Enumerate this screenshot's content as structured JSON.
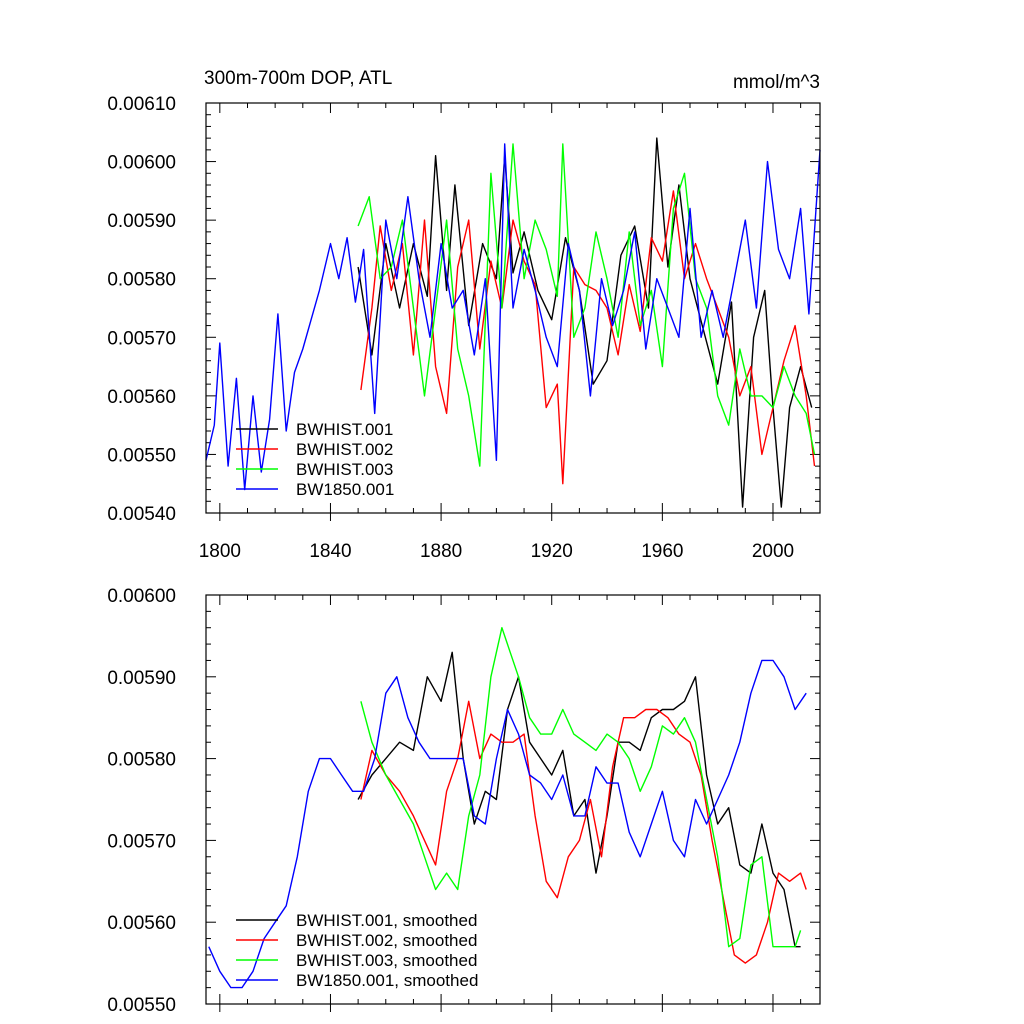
{
  "chart_data": [
    {
      "type": "line",
      "title": "300m-700m DOP, ATL",
      "units": "mmol/m^3",
      "xlabel": "",
      "ylabel": "",
      "xlim": [
        1795,
        2017
      ],
      "ylim": [
        0.0054,
        0.0061
      ],
      "x_ticks": [
        1800,
        1840,
        1880,
        1920,
        1960,
        2000
      ],
      "x_tick_labels": [
        "1800",
        "1840",
        "1880",
        "1920",
        "1960",
        "2000"
      ],
      "y_ticks": [
        0.0054,
        0.0055,
        0.0056,
        0.0057,
        0.0058,
        0.0059,
        0.006,
        0.0061
      ],
      "y_tick_labels": [
        "0.00540",
        "0.00550",
        "0.00560",
        "0.00570",
        "0.00580",
        "0.00590",
        "0.00600",
        "0.00610"
      ],
      "grid": false,
      "legend_placement": "bottom-left",
      "series": [
        {
          "name": "BWHIST.001",
          "color": "#000000",
          "x": [
            1850,
            1855,
            1860,
            1865,
            1870,
            1875,
            1878,
            1882,
            1885,
            1890,
            1895,
            1900,
            1903,
            1906,
            1910,
            1915,
            1920,
            1925,
            1930,
            1935,
            1940,
            1945,
            1950,
            1955,
            1958,
            1962,
            1966,
            1970,
            1975,
            1980,
            1985,
            1989,
            1993,
            1997,
            2000,
            2003,
            2006,
            2010,
            2014
          ],
          "values": [
            0.00582,
            0.00567,
            0.00586,
            0.00575,
            0.00586,
            0.00577,
            0.00601,
            0.00578,
            0.00596,
            0.00572,
            0.00586,
            0.0058,
            0.00601,
            0.00581,
            0.00588,
            0.00578,
            0.00573,
            0.00587,
            0.00578,
            0.00562,
            0.00566,
            0.00584,
            0.00589,
            0.00575,
            0.00604,
            0.00582,
            0.00596,
            0.0058,
            0.00571,
            0.00562,
            0.00576,
            0.00541,
            0.0057,
            0.00578,
            0.00558,
            0.00541,
            0.00558,
            0.00565,
            0.00558
          ]
        },
        {
          "name": "BWHIST.002",
          "color": "#ff0000",
          "x": [
            1851,
            1855,
            1858,
            1862,
            1866,
            1870,
            1874,
            1878,
            1882,
            1886,
            1890,
            1894,
            1898,
            1902,
            1906,
            1910,
            1914,
            1918,
            1922,
            1924,
            1928,
            1932,
            1936,
            1940,
            1944,
            1948,
            1952,
            1956,
            1960,
            1964,
            1968,
            1972,
            1976,
            1980,
            1984,
            1988,
            1992,
            1996,
            2000,
            2004,
            2008,
            2012,
            2015
          ],
          "values": [
            0.00561,
            0.00575,
            0.00589,
            0.00578,
            0.00586,
            0.00567,
            0.0059,
            0.00565,
            0.00557,
            0.00582,
            0.0059,
            0.00568,
            0.00583,
            0.00575,
            0.0059,
            0.00583,
            0.00579,
            0.00558,
            0.00562,
            0.00545,
            0.00582,
            0.00579,
            0.00578,
            0.00575,
            0.00567,
            0.00579,
            0.00571,
            0.00587,
            0.00583,
            0.00595,
            0.0058,
            0.00586,
            0.0058,
            0.00575,
            0.0057,
            0.0056,
            0.00565,
            0.0055,
            0.00558,
            0.00566,
            0.00572,
            0.0056,
            0.00548
          ]
        },
        {
          "name": "BWHIST.003",
          "color": "#00ff00",
          "x": [
            1850,
            1854,
            1858,
            1862,
            1866,
            1870,
            1874,
            1878,
            1882,
            1886,
            1890,
            1894,
            1898,
            1902,
            1906,
            1910,
            1914,
            1918,
            1922,
            1924,
            1928,
            1932,
            1936,
            1940,
            1944,
            1948,
            1952,
            1956,
            1960,
            1964,
            1968,
            1972,
            1976,
            1980,
            1984,
            1988,
            1992,
            1996,
            2000,
            2004,
            2008,
            2012,
            2015
          ],
          "values": [
            0.00589,
            0.00594,
            0.0058,
            0.00582,
            0.0059,
            0.00575,
            0.0056,
            0.00575,
            0.0059,
            0.00568,
            0.0056,
            0.00548,
            0.00598,
            0.00575,
            0.00603,
            0.0058,
            0.0059,
            0.00585,
            0.00577,
            0.00603,
            0.0057,
            0.00575,
            0.00588,
            0.0058,
            0.0057,
            0.00588,
            0.00572,
            0.00578,
            0.00565,
            0.00592,
            0.00598,
            0.0058,
            0.00575,
            0.0056,
            0.00555,
            0.00568,
            0.0056,
            0.0056,
            0.00558,
            0.00565,
            0.0056,
            0.00557,
            0.0055
          ]
        },
        {
          "name": "BW1850.001",
          "color": "#0000ff",
          "x": [
            1795,
            1798,
            1800,
            1803,
            1806,
            1809,
            1812,
            1815,
            1818,
            1821,
            1824,
            1827,
            1830,
            1833,
            1836,
            1840,
            1843,
            1846,
            1849,
            1852,
            1856,
            1860,
            1864,
            1868,
            1872,
            1876,
            1880,
            1884,
            1888,
            1892,
            1896,
            1900,
            1903,
            1906,
            1910,
            1914,
            1918,
            1922,
            1926,
            1930,
            1934,
            1938,
            1942,
            1946,
            1950,
            1954,
            1958,
            1962,
            1966,
            1970,
            1974,
            1978,
            1982,
            1986,
            1990,
            1994,
            1998,
            2002,
            2006,
            2010,
            2013,
            2017
          ],
          "values": [
            0.00549,
            0.00555,
            0.00569,
            0.00548,
            0.00563,
            0.00544,
            0.0056,
            0.00547,
            0.00556,
            0.00574,
            0.00554,
            0.00564,
            0.00568,
            0.00573,
            0.00578,
            0.00586,
            0.0058,
            0.00587,
            0.00576,
            0.00585,
            0.00557,
            0.0059,
            0.0058,
            0.00594,
            0.0058,
            0.0057,
            0.00586,
            0.00575,
            0.00578,
            0.00567,
            0.0058,
            0.00549,
            0.00603,
            0.00575,
            0.00585,
            0.00578,
            0.0057,
            0.00565,
            0.00586,
            0.00578,
            0.0056,
            0.0058,
            0.00572,
            0.00578,
            0.00588,
            0.00568,
            0.0058,
            0.00575,
            0.0057,
            0.00592,
            0.0057,
            0.00578,
            0.0057,
            0.0058,
            0.0059,
            0.00575,
            0.006,
            0.00585,
            0.0058,
            0.00592,
            0.00574,
            0.00602
          ]
        }
      ]
    },
    {
      "type": "line",
      "title": "",
      "xlabel": "",
      "ylabel": "",
      "xlim": [
        1795,
        2017
      ],
      "ylim": [
        0.0055,
        0.006
      ],
      "x_ticks": [
        1800,
        1840,
        1880,
        1920,
        1960,
        2000
      ],
      "x_tick_labels": [],
      "y_ticks": [
        0.0055,
        0.0056,
        0.0057,
        0.0058,
        0.0059,
        0.006
      ],
      "y_tick_labels": [
        "0.00550",
        "0.00560",
        "0.00570",
        "0.00580",
        "0.00590",
        "0.00600"
      ],
      "grid": false,
      "legend_placement": "bottom-left",
      "series": [
        {
          "name": "BWHIST.001, smoothed",
          "color": "#000000",
          "x": [
            1850,
            1855,
            1860,
            1865,
            1870,
            1875,
            1880,
            1884,
            1888,
            1892,
            1896,
            1900,
            1904,
            1908,
            1912,
            1916,
            1920,
            1924,
            1928,
            1932,
            1936,
            1940,
            1944,
            1948,
            1952,
            1956,
            1960,
            1964,
            1968,
            1972,
            1976,
            1980,
            1984,
            1988,
            1992,
            1996,
            2000,
            2004,
            2008,
            2010
          ],
          "values": [
            0.00575,
            0.00578,
            0.0058,
            0.00582,
            0.00581,
            0.0059,
            0.00587,
            0.00593,
            0.0058,
            0.00572,
            0.00576,
            0.00575,
            0.00586,
            0.0059,
            0.00582,
            0.0058,
            0.00578,
            0.00581,
            0.00573,
            0.00575,
            0.00566,
            0.00573,
            0.00582,
            0.00582,
            0.00581,
            0.00585,
            0.00586,
            0.00586,
            0.00587,
            0.0059,
            0.00578,
            0.00572,
            0.00574,
            0.00567,
            0.00566,
            0.00572,
            0.00566,
            0.00564,
            0.00557,
            0.00557
          ]
        },
        {
          "name": "BWHIST.002, smoothed",
          "color": "#ff0000",
          "x": [
            1851,
            1855,
            1860,
            1865,
            1870,
            1874,
            1878,
            1882,
            1886,
            1890,
            1894,
            1898,
            1902,
            1906,
            1910,
            1914,
            1918,
            1922,
            1926,
            1930,
            1934,
            1938,
            1942,
            1946,
            1950,
            1954,
            1958,
            1962,
            1966,
            1970,
            1974,
            1978,
            1982,
            1986,
            1990,
            1994,
            1998,
            2002,
            2006,
            2010,
            2012
          ],
          "values": [
            0.00575,
            0.00581,
            0.00578,
            0.00576,
            0.00573,
            0.0057,
            0.00567,
            0.00576,
            0.0058,
            0.00587,
            0.0058,
            0.00583,
            0.00582,
            0.00582,
            0.00583,
            0.00573,
            0.00565,
            0.00563,
            0.00568,
            0.0057,
            0.00575,
            0.00568,
            0.00579,
            0.00585,
            0.00585,
            0.00586,
            0.00586,
            0.00585,
            0.00583,
            0.00582,
            0.00578,
            0.0057,
            0.00563,
            0.00556,
            0.00555,
            0.00556,
            0.0056,
            0.00566,
            0.00565,
            0.00566,
            0.00564
          ]
        },
        {
          "name": "BWHIST.003, smoothed",
          "color": "#00ff00",
          "x": [
            1851,
            1855,
            1860,
            1865,
            1870,
            1874,
            1878,
            1882,
            1886,
            1890,
            1894,
            1898,
            1902,
            1905,
            1908,
            1912,
            1916,
            1920,
            1924,
            1928,
            1932,
            1936,
            1940,
            1944,
            1948,
            1952,
            1956,
            1960,
            1964,
            1968,
            1972,
            1976,
            1980,
            1984,
            1988,
            1992,
            1996,
            2000,
            2004,
            2008,
            2010
          ],
          "values": [
            0.00587,
            0.00582,
            0.00578,
            0.00575,
            0.00572,
            0.00568,
            0.00564,
            0.00566,
            0.00564,
            0.00573,
            0.00578,
            0.0059,
            0.00596,
            0.00593,
            0.0059,
            0.00585,
            0.00583,
            0.00583,
            0.00586,
            0.00583,
            0.00582,
            0.00581,
            0.00583,
            0.00582,
            0.0058,
            0.00576,
            0.00579,
            0.00584,
            0.00583,
            0.00585,
            0.00582,
            0.00575,
            0.00568,
            0.00557,
            0.00558,
            0.00567,
            0.00568,
            0.00557,
            0.00557,
            0.00557,
            0.00559
          ]
        },
        {
          "name": "BW1850.001, smoothed",
          "color": "#0000ff",
          "x": [
            1796,
            1800,
            1804,
            1808,
            1812,
            1816,
            1820,
            1824,
            1828,
            1832,
            1836,
            1840,
            1844,
            1848,
            1852,
            1856,
            1860,
            1864,
            1868,
            1872,
            1876,
            1880,
            1884,
            1888,
            1892,
            1896,
            1900,
            1904,
            1908,
            1912,
            1916,
            1920,
            1924,
            1928,
            1932,
            1936,
            1940,
            1944,
            1948,
            1952,
            1956,
            1960,
            1964,
            1968,
            1972,
            1976,
            1980,
            1984,
            1988,
            1992,
            1996,
            2000,
            2004,
            2008,
            2012
          ],
          "values": [
            0.00557,
            0.00554,
            0.00552,
            0.00552,
            0.00554,
            0.00558,
            0.0056,
            0.00562,
            0.00568,
            0.00576,
            0.0058,
            0.0058,
            0.00578,
            0.00576,
            0.00576,
            0.0058,
            0.00588,
            0.0059,
            0.00585,
            0.00582,
            0.0058,
            0.0058,
            0.0058,
            0.0058,
            0.00573,
            0.00572,
            0.0058,
            0.00586,
            0.00583,
            0.00578,
            0.00577,
            0.00575,
            0.00578,
            0.00573,
            0.00573,
            0.00579,
            0.00577,
            0.00577,
            0.00571,
            0.00568,
            0.00572,
            0.00576,
            0.0057,
            0.00568,
            0.00575,
            0.00572,
            0.00575,
            0.00578,
            0.00582,
            0.00588,
            0.00592,
            0.00592,
            0.0059,
            0.00586,
            0.00588
          ]
        }
      ]
    }
  ]
}
